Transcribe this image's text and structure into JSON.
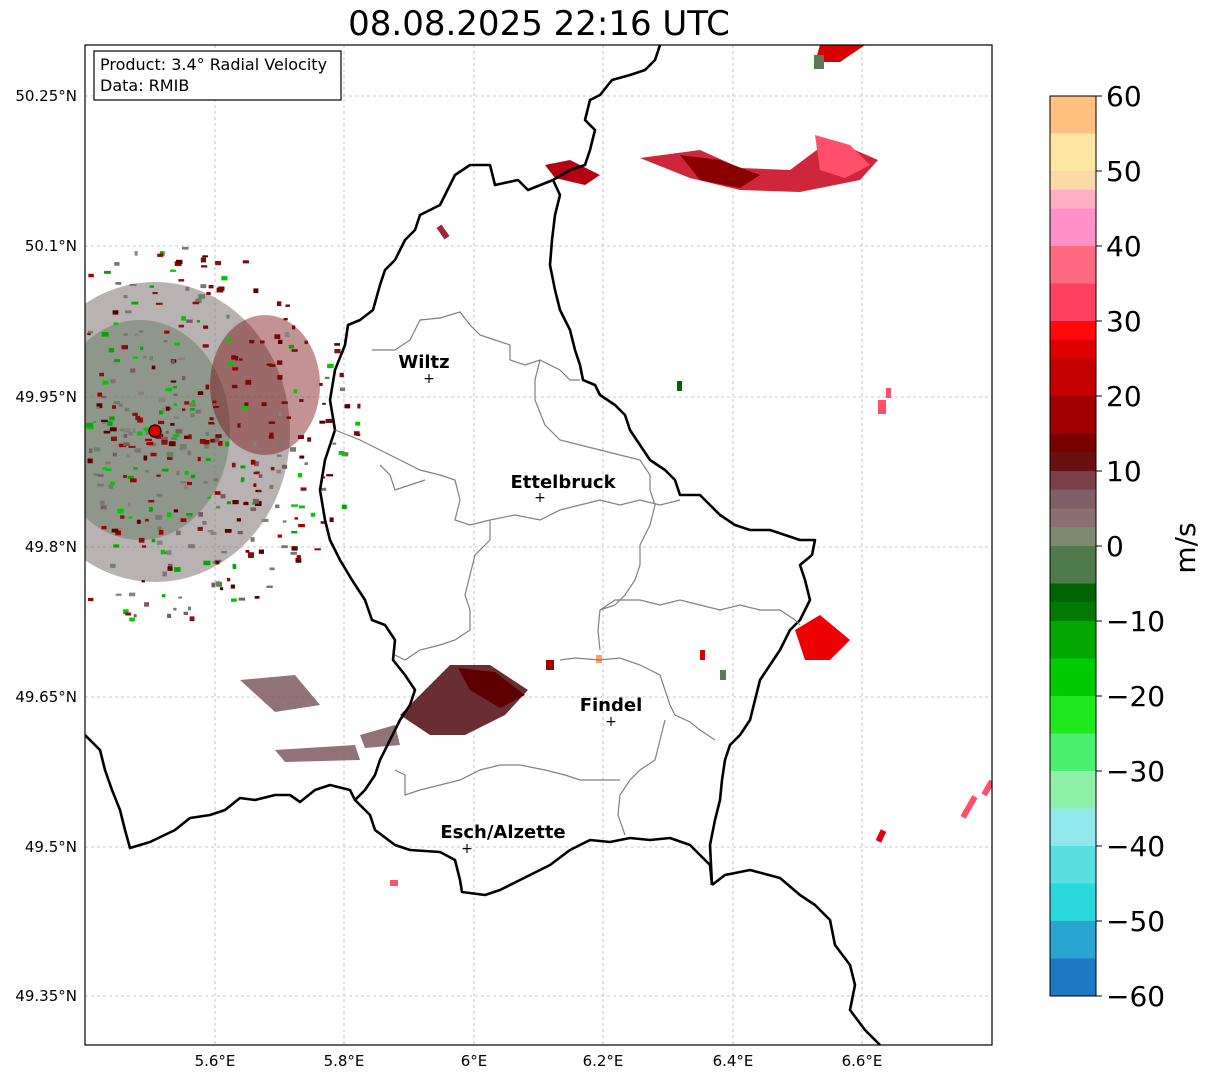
{
  "title": "08.08.2025 22:16 UTC",
  "info_box": {
    "product": "Product: 3.4° Radial Velocity",
    "source": "Data: RMIB"
  },
  "lon_ticks": [
    "5.6°E",
    "5.8°E",
    "6°E",
    "6.2°E",
    "6.4°E",
    "6.6°E"
  ],
  "lat_ticks": [
    "50.25°N",
    "50.1°N",
    "49.95°N",
    "49.8°N",
    "49.65°N",
    "49.5°N",
    "49.35°N"
  ],
  "cities": [
    {
      "name": "Wiltz",
      "lon": 5.93,
      "lat": 49.97
    },
    {
      "name": "Ettelbruck",
      "lon": 6.1,
      "lat": 49.85
    },
    {
      "name": "Findel",
      "lon": 6.21,
      "lat": 49.627
    },
    {
      "name": "Esch/Alzette",
      "lon": 5.99,
      "lat": 49.5
    }
  ],
  "radar_site": {
    "lon": 5.505,
    "lat": 49.914,
    "color": "#e00000"
  },
  "colorbar": {
    "label": "m/s",
    "min": -60,
    "max": 60,
    "ticks": [
      "60",
      "50",
      "40",
      "30",
      "20",
      "10",
      "0",
      "−10",
      "−20",
      "−30",
      "−40",
      "−50",
      "−60"
    ]
  },
  "colors": {
    "approaching": "#00b000",
    "receding": "#d00000",
    "near_zero": "#7f6f70",
    "border": "#000000",
    "canton_lines": "#808080"
  }
}
